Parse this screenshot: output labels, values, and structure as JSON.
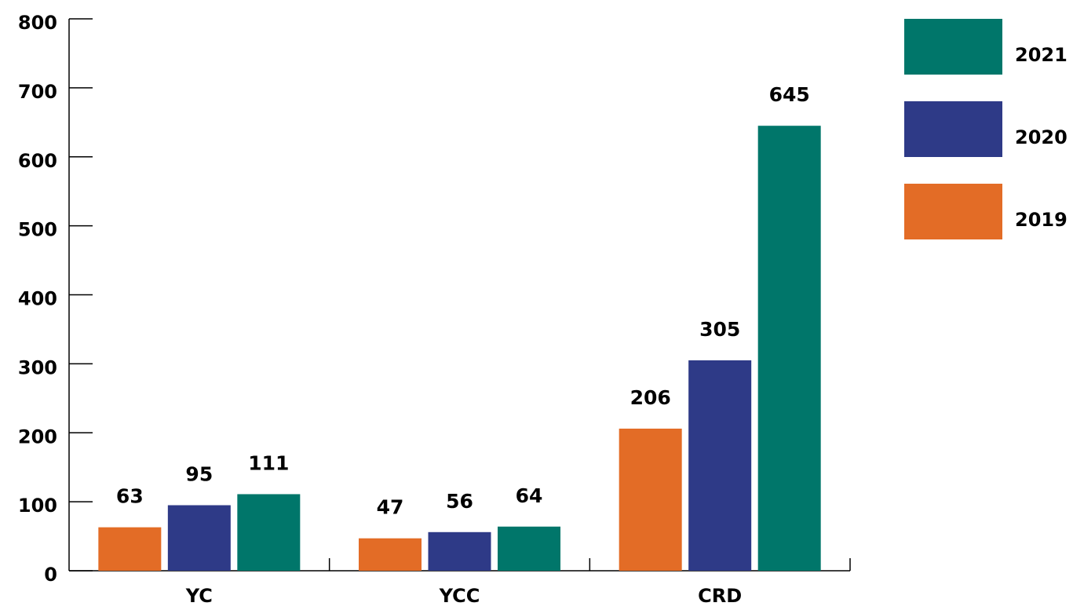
{
  "chart_data": {
    "type": "bar",
    "categories": [
      "YC",
      "YCC",
      "CRD"
    ],
    "series": [
      {
        "name": "2019",
        "color": "#e36c26",
        "values": [
          63,
          47,
          206
        ]
      },
      {
        "name": "2020",
        "color": "#2e3a87",
        "values": [
          95,
          56,
          305
        ]
      },
      {
        "name": "2021",
        "color": "#00766a",
        "values": [
          111,
          64,
          645
        ]
      }
    ],
    "ylim": [
      0,
      800
    ],
    "yticks": [
      0,
      100,
      200,
      300,
      400,
      500,
      600,
      700,
      800
    ],
    "legend": "right"
  }
}
